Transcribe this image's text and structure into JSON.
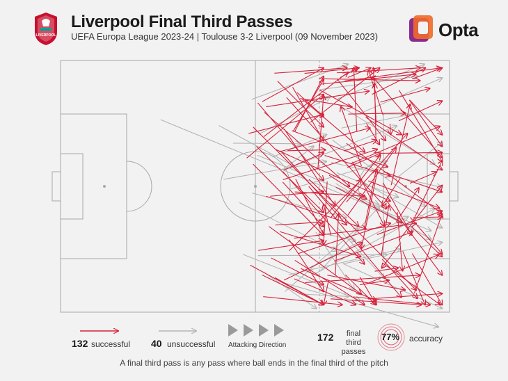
{
  "header": {
    "title": "Liverpool Final Third Passes",
    "subtitle": "UEFA Europa League 2023-24 | Toulouse 3-2 Liverpool (09 November 2023)",
    "crest_text": "LIVERPOOL",
    "brand": "Opta"
  },
  "legend": {
    "successful_count": "132",
    "successful_label": "successful",
    "unsuccessful_count": "40",
    "unsuccessful_label": "unsuccessful",
    "direction_label": "Attacking Direction",
    "total_count": "172",
    "total_label_line1": "final third",
    "total_label_line2": "passes",
    "accuracy_value": "77%",
    "accuracy_label": "accuracy"
  },
  "footer": "A final third pass is any pass where ball ends in the final third of the pitch",
  "colors": {
    "successful": "#d6213a",
    "unsuccessful": "#b4b4b4",
    "pitch_line": "#a8a8a8",
    "background": "#f2f2f2",
    "opta_orange": "#f06a2a",
    "opta_purple": "#8a2b8e"
  },
  "chart_data": {
    "type": "scatter",
    "pitch": {
      "length": 105,
      "width": 68,
      "attacking_direction": "right"
    },
    "successful_count": 132,
    "unsuccessful_count": 40,
    "total": 172,
    "accuracy_pct": 77,
    "sample_successful_passes": [
      [
        72,
        58,
        93,
        62
      ],
      [
        60,
        30,
        82,
        55
      ],
      [
        55,
        14,
        78,
        34
      ],
      [
        58,
        24,
        89,
        38
      ],
      [
        61,
        10,
        88,
        40
      ],
      [
        52,
        18,
        96,
        62
      ],
      [
        66,
        60,
        97,
        58
      ],
      [
        70,
        8,
        92,
        20
      ],
      [
        63,
        48,
        96,
        44
      ],
      [
        67,
        34,
        92,
        64
      ]
    ],
    "sample_unsuccessful_passes": [
      [
        27,
        16,
        100,
        46
      ],
      [
        60,
        60,
        102,
        72
      ],
      [
        75,
        12,
        101,
        28
      ],
      [
        68,
        58,
        101,
        40
      ]
    ]
  }
}
